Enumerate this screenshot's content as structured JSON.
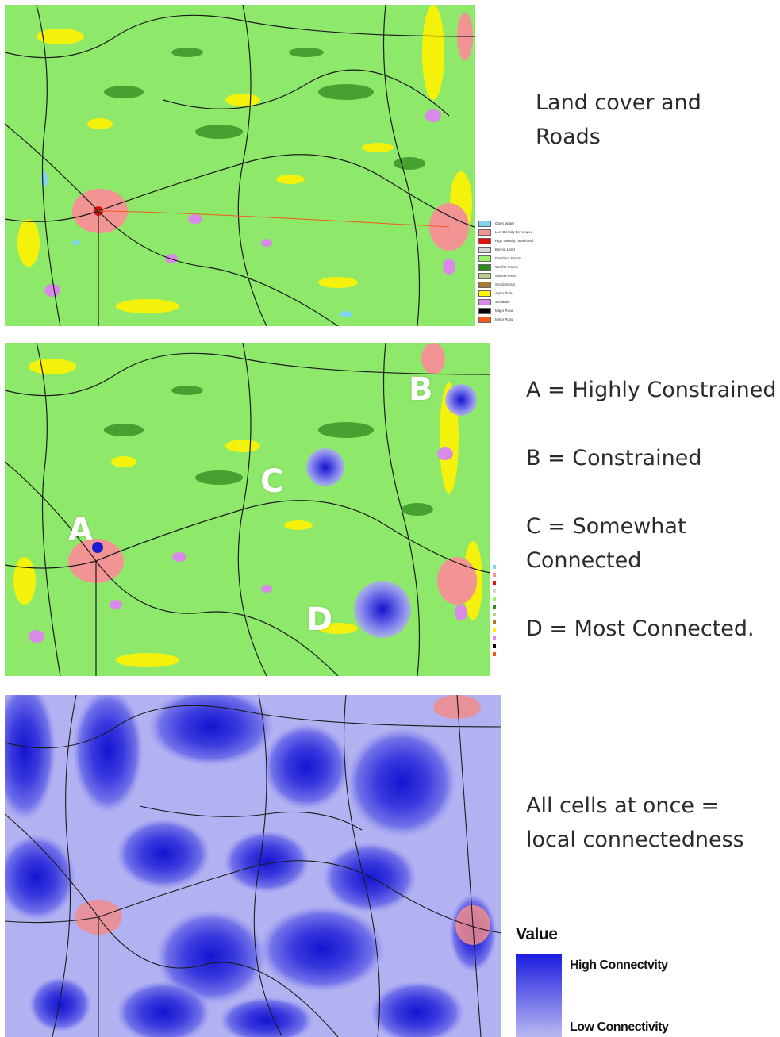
{
  "panels": [
    {
      "caption_lines": [
        "Land cover  and",
        "Roads"
      ]
    },
    {
      "caption_lines": [
        "A = Highly Constrained",
        "",
        "B = Constrained",
        "",
        "C = Somewhat",
        "Connected",
        "",
        "D = Most Connected."
      ]
    },
    {
      "caption_lines": [
        "All cells at once =",
        "local connectedness"
      ]
    }
  ],
  "landcover_legend": [
    {
      "label": "Open Water",
      "color": "#7fd4f0"
    },
    {
      "label": "Low Density Developed",
      "color": "#f29494"
    },
    {
      "label": "High Density Developed",
      "color": "#e01010"
    },
    {
      "label": "Barren Land",
      "color": "#d8d8d8"
    },
    {
      "label": "Decidous Forest",
      "color": "#9ef06a"
    },
    {
      "label": "Conifer Forest",
      "color": "#2f8a1e"
    },
    {
      "label": "Mixed Forest",
      "color": "#b6cf8c"
    },
    {
      "label": "Shrub/Scrub",
      "color": "#a87b2f"
    },
    {
      "label": "Agriculture",
      "color": "#fff200"
    },
    {
      "label": "Wetlands",
      "color": "#d98ae8"
    },
    {
      "label": "Major Road",
      "color": "#000000"
    },
    {
      "label": "Minor Road",
      "color": "#f25a1a"
    }
  ],
  "point_labels": [
    "A",
    "B",
    "C",
    "D"
  ],
  "connectivity_legend": {
    "title": "Value",
    "high": "High Connectvity",
    "low": "Low Connectivity",
    "high_color": "#1c1ce0",
    "low_color": "#b9b9f3"
  }
}
